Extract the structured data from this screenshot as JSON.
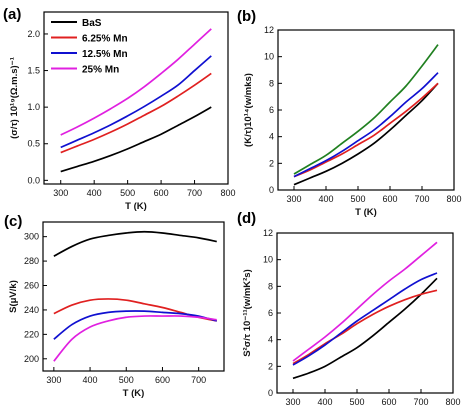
{
  "chart_data": [
    {
      "panel_label": "(a)",
      "type": "line",
      "xlabel": "T (K)",
      "ylabel": "(σ/τ) 10¹⁹(Ω.m.s)⁻¹",
      "xlim": [
        250,
        800
      ],
      "ylim": [
        -0.05,
        2.3
      ],
      "x_ticks": [
        300,
        400,
        500,
        600,
        700,
        800
      ],
      "y_ticks": [
        0.0,
        0.5,
        1.0,
        1.5,
        2.0
      ],
      "y_tick_labels": [
        "0.0",
        "0.5",
        "1.0",
        "1.5",
        "2.0"
      ],
      "legend_position": "top-left",
      "x": [
        300,
        350,
        400,
        450,
        500,
        550,
        600,
        650,
        700,
        750
      ],
      "series": [
        {
          "name": "BaS",
          "color": "#000000",
          "values": [
            0.12,
            0.19,
            0.26,
            0.34,
            0.43,
            0.53,
            0.63,
            0.75,
            0.87,
            1.0
          ]
        },
        {
          "name": "6.25% Mn",
          "color": "#e02020",
          "values": [
            0.38,
            0.47,
            0.56,
            0.66,
            0.77,
            0.89,
            1.01,
            1.15,
            1.3,
            1.46
          ]
        },
        {
          "name": "12.5% Mn",
          "color": "#1010d0",
          "values": [
            0.45,
            0.55,
            0.65,
            0.76,
            0.88,
            1.01,
            1.15,
            1.3,
            1.5,
            1.7
          ]
        },
        {
          "name": "25% Mn",
          "color": "#e020e0",
          "values": [
            0.62,
            0.73,
            0.85,
            0.98,
            1.12,
            1.28,
            1.46,
            1.65,
            1.86,
            2.07
          ]
        }
      ]
    },
    {
      "panel_label": "(b)",
      "type": "line",
      "xlabel": "T (K)",
      "ylabel": "(K/τ)10¹⁴(w/mks)",
      "xlim": [
        250,
        800
      ],
      "ylim": [
        0,
        12
      ],
      "x_ticks": [
        300,
        400,
        500,
        600,
        700,
        800
      ],
      "y_ticks": [
        0,
        2,
        4,
        6,
        8,
        10,
        12
      ],
      "y_tick_labels": [
        "0",
        "2",
        "4",
        "6",
        "8",
        "10",
        "12"
      ],
      "x": [
        300,
        350,
        400,
        450,
        500,
        550,
        600,
        650,
        700,
        750
      ],
      "series": [
        {
          "color": "#000000",
          "values": [
            0.4,
            0.9,
            1.4,
            2.0,
            2.7,
            3.5,
            4.5,
            5.6,
            6.7,
            8.0
          ]
        },
        {
          "color": "#e02020",
          "values": [
            1.0,
            1.5,
            2.1,
            2.7,
            3.4,
            4.1,
            5.0,
            5.9,
            6.9,
            8.0
          ]
        },
        {
          "color": "#1010d0",
          "values": [
            1.0,
            1.6,
            2.2,
            2.9,
            3.7,
            4.5,
            5.5,
            6.6,
            7.6,
            8.8
          ]
        },
        {
          "color": "#208020",
          "values": [
            1.2,
            1.9,
            2.6,
            3.5,
            4.4,
            5.4,
            6.6,
            7.8,
            9.3,
            10.9
          ]
        }
      ]
    },
    {
      "panel_label": "(c)",
      "type": "line",
      "xlabel": "T (K)",
      "ylabel": "S(μV/k)",
      "xlim": [
        270,
        770
      ],
      "ylim": [
        190,
        312
      ],
      "x_ticks": [
        300,
        400,
        500,
        600,
        700
      ],
      "y_ticks": [
        200,
        220,
        240,
        260,
        280,
        300
      ],
      "y_tick_labels": [
        "200",
        "220",
        "240",
        "260",
        "280",
        "300"
      ],
      "x": [
        300,
        350,
        400,
        450,
        500,
        550,
        600,
        650,
        700,
        750
      ],
      "series": [
        {
          "color": "#000000",
          "values": [
            284,
            292,
            298,
            301,
            303,
            304,
            303,
            301,
            299,
            296
          ]
        },
        {
          "color": "#e02020",
          "values": [
            237,
            244,
            248,
            249,
            248,
            245,
            242,
            238,
            234,
            231
          ]
        },
        {
          "color": "#1010d0",
          "values": [
            216,
            228,
            235,
            238,
            239,
            239,
            238,
            237,
            235,
            231
          ]
        },
        {
          "color": "#e020e0",
          "values": [
            198,
            216,
            226,
            231,
            234,
            235,
            235,
            235,
            234,
            232
          ]
        }
      ]
    },
    {
      "panel_label": "(d)",
      "type": "line",
      "xlabel": "T (K)",
      "ylabel": "S²σ/τ 10⁻¹¹(w/mK²s)",
      "xlim": [
        250,
        800
      ],
      "ylim": [
        0,
        12
      ],
      "x_ticks": [
        300,
        400,
        500,
        600,
        700,
        800
      ],
      "y_ticks": [
        0,
        2,
        4,
        6,
        8,
        10,
        12
      ],
      "y_tick_labels": [
        "0",
        "2",
        "4",
        "6",
        "8",
        "10",
        "12"
      ],
      "x": [
        300,
        350,
        400,
        450,
        500,
        550,
        600,
        650,
        700,
        750
      ],
      "series": [
        {
          "color": "#000000",
          "values": [
            1.1,
            1.5,
            2.0,
            2.7,
            3.4,
            4.3,
            5.3,
            6.3,
            7.4,
            8.6
          ]
        },
        {
          "color": "#e02020",
          "values": [
            2.2,
            2.9,
            3.7,
            4.4,
            5.2,
            5.9,
            6.5,
            7.0,
            7.4,
            7.7
          ]
        },
        {
          "color": "#1010d0",
          "values": [
            2.1,
            2.8,
            3.6,
            4.5,
            5.4,
            6.2,
            7.0,
            7.8,
            8.5,
            9.0
          ]
        },
        {
          "color": "#e020e0",
          "values": [
            2.4,
            3.3,
            4.2,
            5.2,
            6.3,
            7.4,
            8.4,
            9.3,
            10.3,
            11.3
          ]
        }
      ]
    }
  ]
}
